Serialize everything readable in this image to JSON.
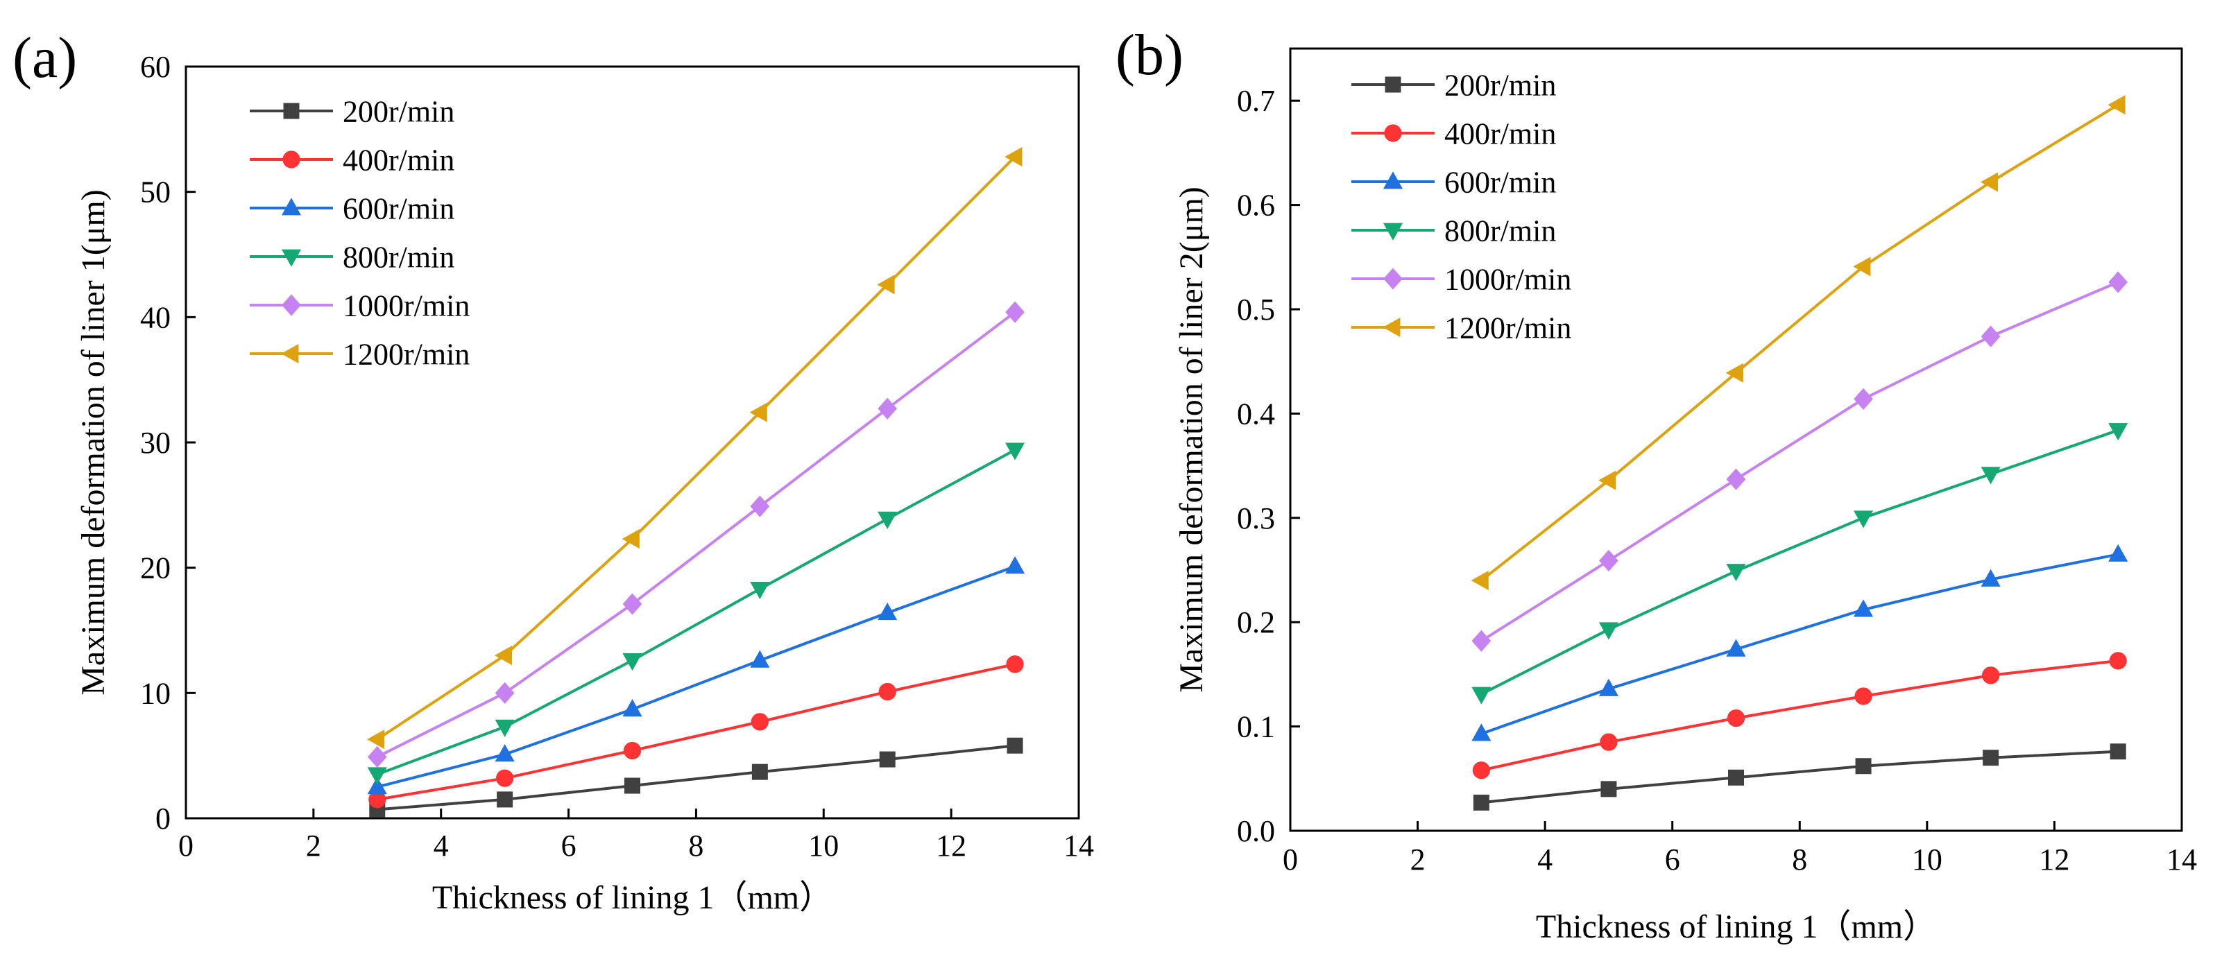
{
  "chart_data": [
    {
      "panel_label": "(a)",
      "type": "line",
      "title": "",
      "xlabel": "Thickness of lining 1（mm）",
      "ylabel": "Maximum deformation of liner 1(μm)",
      "xlim": [
        0,
        14
      ],
      "ylim": [
        0,
        60
      ],
      "xticks": [
        0,
        2,
        4,
        6,
        8,
        10,
        12,
        14
      ],
      "yticks": [
        0,
        10,
        20,
        30,
        40,
        50,
        60
      ],
      "ytick_labels": [
        "0",
        "10",
        "20",
        "30",
        "40",
        "50",
        "60"
      ],
      "grid": false,
      "legend_position": "top-left",
      "x": [
        3,
        5,
        7,
        9,
        11,
        13
      ],
      "series": [
        {
          "name": "200r/min",
          "color": "#404040",
          "marker": "square",
          "values": [
            0.7,
            1.5,
            2.6,
            3.7,
            4.7,
            5.8
          ]
        },
        {
          "name": "400r/min",
          "color": "#ff3333",
          "marker": "circle",
          "values": [
            1.5,
            3.2,
            5.4,
            7.7,
            10.1,
            12.3
          ]
        },
        {
          "name": "600r/min",
          "color": "#1f70e0",
          "marker": "triangle-up",
          "values": [
            2.5,
            5.1,
            8.7,
            12.6,
            16.4,
            20.1
          ]
        },
        {
          "name": "800r/min",
          "color": "#16a872",
          "marker": "triangle-down",
          "values": [
            3.5,
            7.3,
            12.6,
            18.3,
            23.9,
            29.4
          ]
        },
        {
          "name": "1000r/min",
          "color": "#c582f0",
          "marker": "diamond",
          "values": [
            4.9,
            10.0,
            17.1,
            24.9,
            32.7,
            40.4
          ]
        },
        {
          "name": "1200r/min",
          "color": "#dda20d",
          "marker": "triangle-left",
          "values": [
            6.3,
            13.0,
            22.3,
            32.4,
            42.6,
            52.8
          ]
        }
      ]
    },
    {
      "panel_label": "(b)",
      "type": "line",
      "title": "",
      "xlabel": "Thickness of lining 1（mm）",
      "ylabel": "Maximum deformation of liner 2(μm)",
      "xlim": [
        0,
        14
      ],
      "ylim": [
        0,
        0.75
      ],
      "xticks": [
        0,
        2,
        4,
        6,
        8,
        10,
        12,
        14
      ],
      "yticks": [
        0,
        0.1,
        0.2,
        0.3,
        0.4,
        0.5,
        0.6,
        0.7
      ],
      "ytick_labels": [
        "0.0",
        "0.1",
        "0.2",
        "0.3",
        "0.4",
        "0.5",
        "0.6",
        "0.7"
      ],
      "grid": false,
      "legend_position": "top-left",
      "x": [
        3,
        5,
        7,
        9,
        11,
        13
      ],
      "series": [
        {
          "name": "200r/min",
          "color": "#404040",
          "marker": "square",
          "values": [
            0.027,
            0.04,
            0.051,
            0.062,
            0.07,
            0.076
          ]
        },
        {
          "name": "400r/min",
          "color": "#ff3333",
          "marker": "circle",
          "values": [
            0.058,
            0.085,
            0.108,
            0.129,
            0.149,
            0.163
          ]
        },
        {
          "name": "600r/min",
          "color": "#1f70e0",
          "marker": "triangle-up",
          "values": [
            0.093,
            0.136,
            0.174,
            0.212,
            0.241,
            0.265
          ]
        },
        {
          "name": "800r/min",
          "color": "#16a872",
          "marker": "triangle-down",
          "values": [
            0.131,
            0.193,
            0.249,
            0.3,
            0.342,
            0.384
          ]
        },
        {
          "name": "1000r/min",
          "color": "#c582f0",
          "marker": "diamond",
          "values": [
            0.182,
            0.259,
            0.337,
            0.414,
            0.474,
            0.526
          ]
        },
        {
          "name": "1200r/min",
          "color": "#dda20d",
          "marker": "triangle-left",
          "values": [
            0.24,
            0.336,
            0.439,
            0.541,
            0.622,
            0.696
          ]
        }
      ]
    }
  ]
}
